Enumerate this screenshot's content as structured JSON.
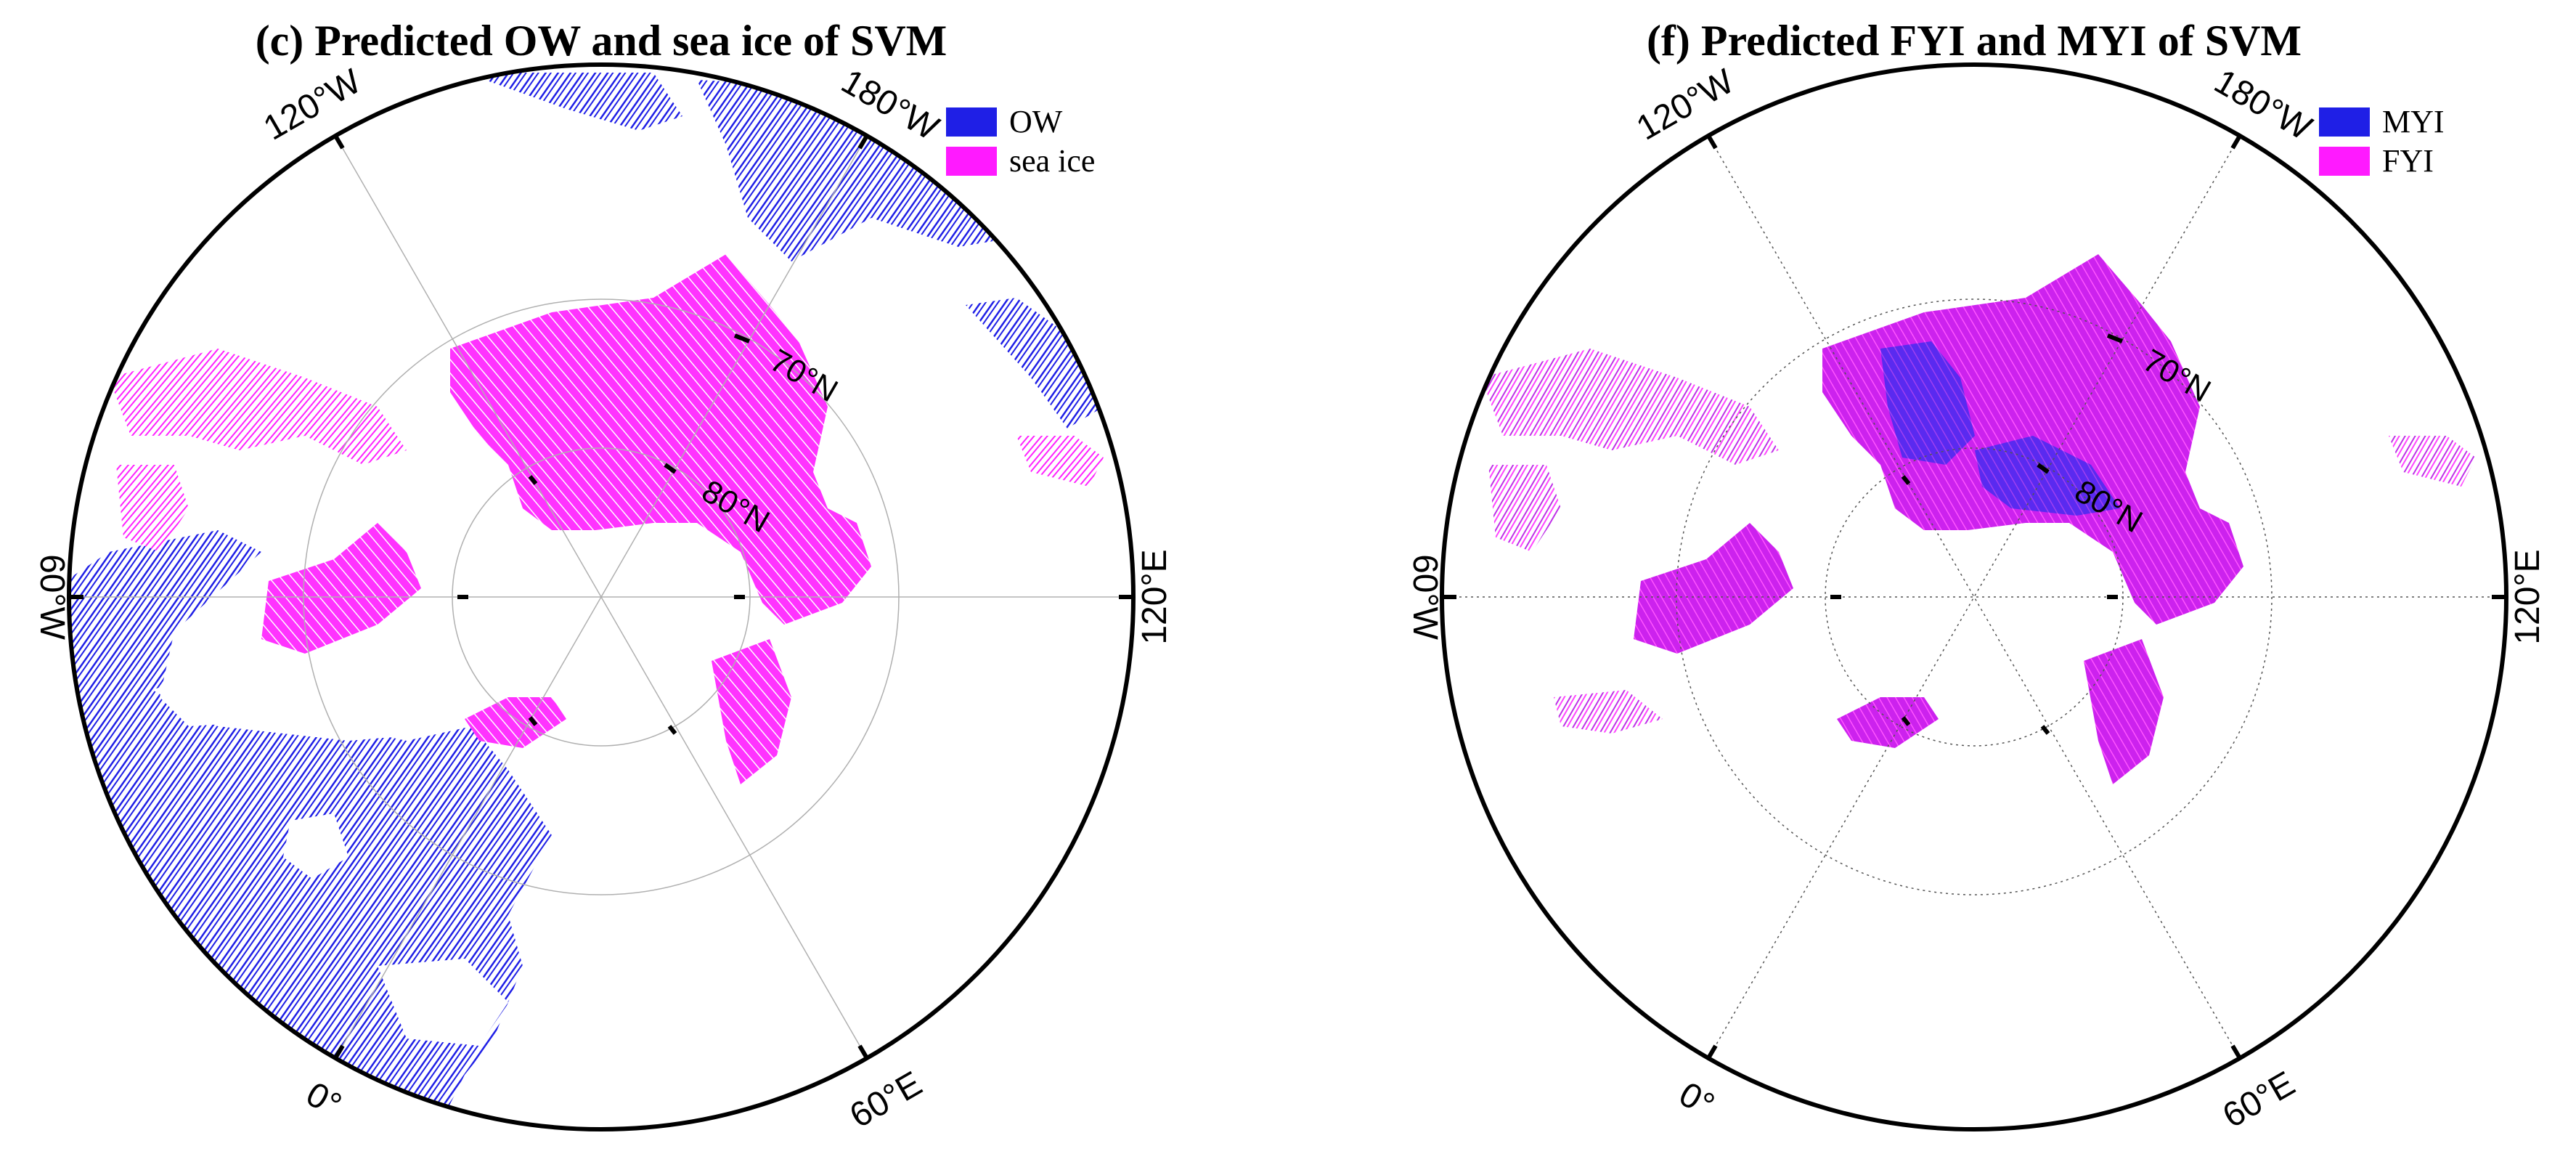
{
  "colors": {
    "ow": "#1f1fe6",
    "sea_ice": "#ff1aff",
    "myi": "#1f1fe6",
    "fyi": "#ff1aff",
    "fyi_mixed": "#cc33ee",
    "frame": "#000000",
    "grid": "#9a9a9a"
  },
  "panels": [
    {
      "id": "c",
      "title": "(c) Predicted OW and sea ice of SVM",
      "legend": [
        {
          "label": "OW",
          "color_key": "ow"
        },
        {
          "label": "sea ice",
          "color_key": "sea_ice"
        }
      ],
      "lon_labels": {
        "w120": "120°W",
        "e180": "180°W",
        "w60": "60°W",
        "e120": "120°E",
        "zero": "0°",
        "e60": "60°E"
      },
      "lat_labels": {
        "n70": "70°N",
        "n80": "80°N"
      }
    },
    {
      "id": "f",
      "title": "(f) Predicted FYI and MYI of SVM",
      "legend": [
        {
          "label": "MYI",
          "color_key": "myi"
        },
        {
          "label": "FYI",
          "color_key": "fyi"
        }
      ],
      "lon_labels": {
        "w120": "120°W",
        "e180": "180°W",
        "w60": "60°W",
        "e120": "120°E",
        "zero": "0°",
        "e60": "60°E"
      },
      "lat_labels": {
        "n70": "70°N",
        "n80": "80°N"
      }
    }
  ]
}
